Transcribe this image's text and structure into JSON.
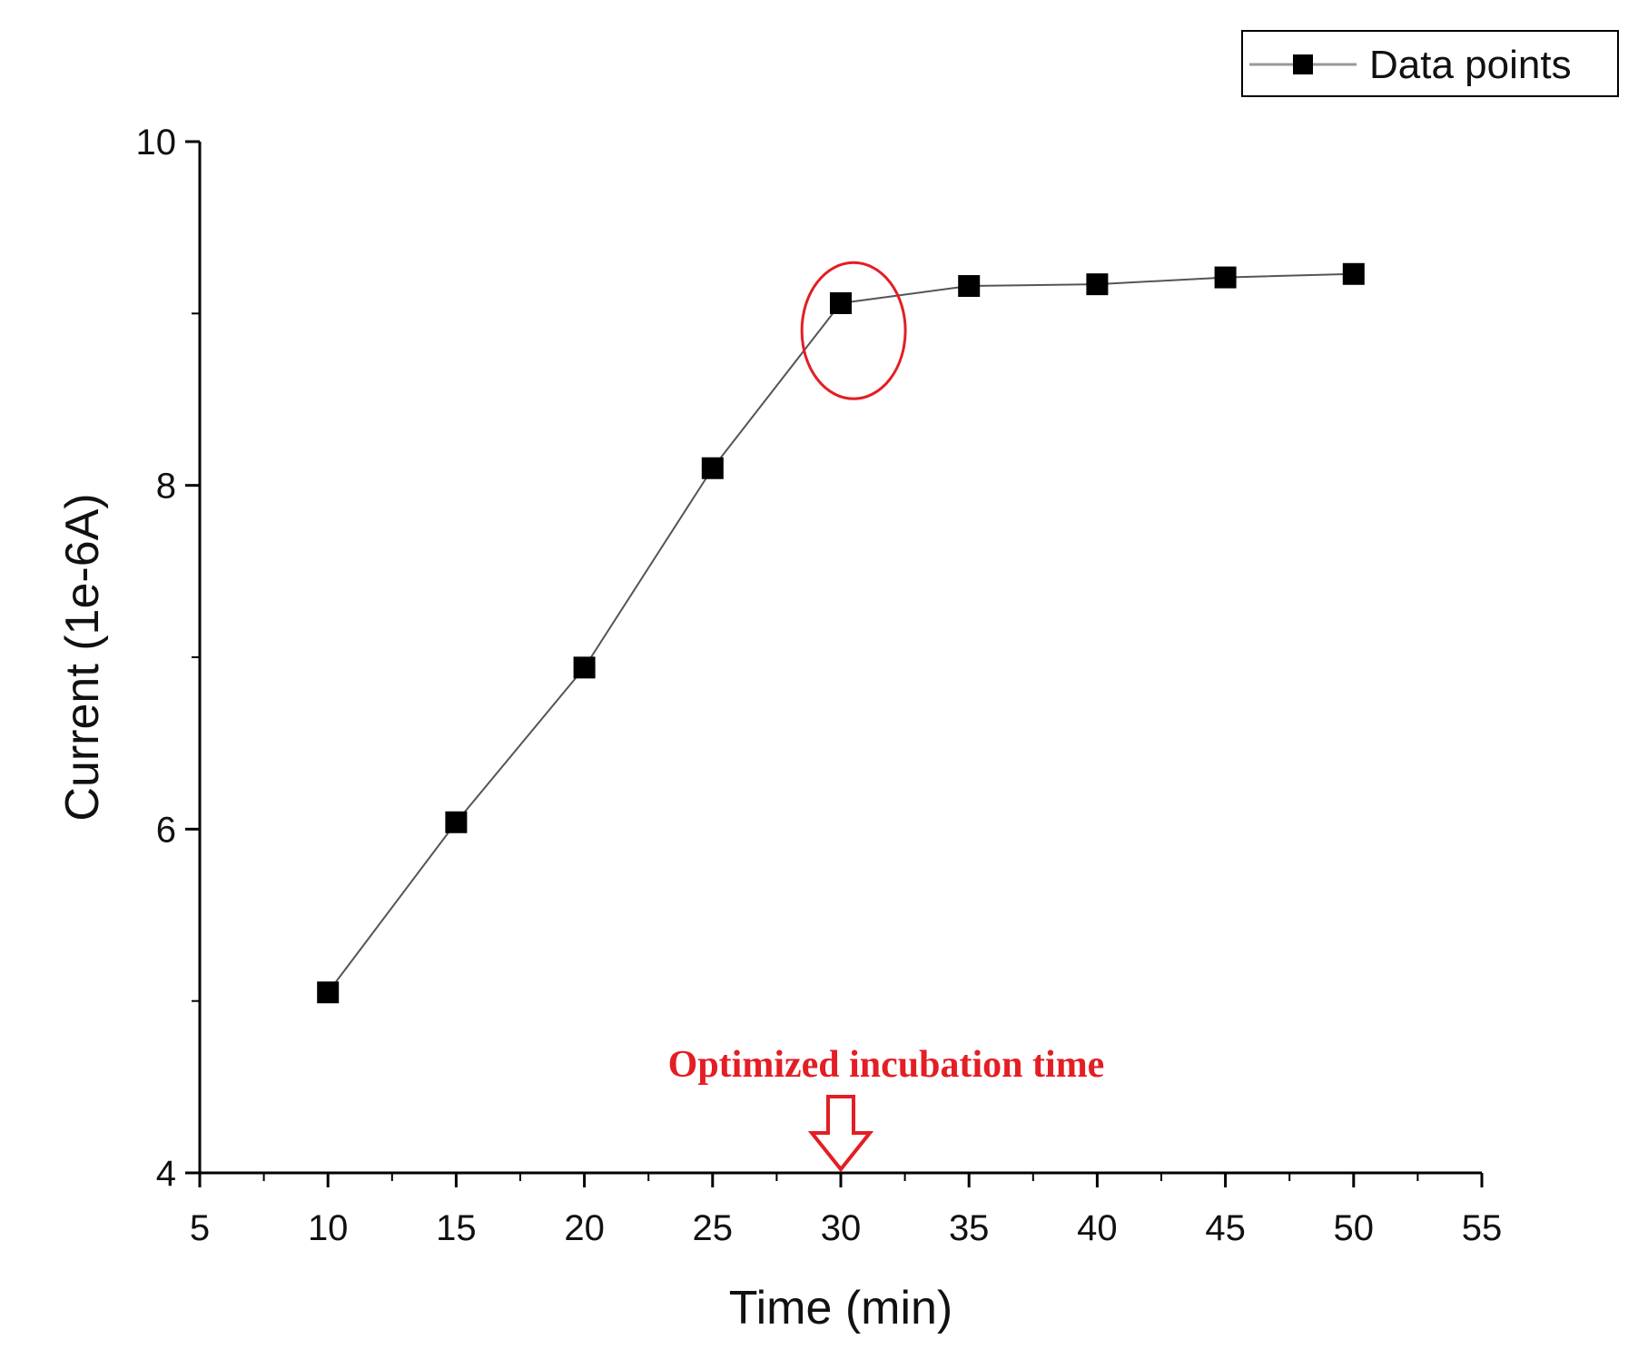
{
  "chart_data": {
    "type": "line",
    "title": "",
    "xlabel": "Time (min)",
    "ylabel": "Current (1e-6A)",
    "xlim": [
      5,
      55
    ],
    "ylim": [
      4,
      10
    ],
    "xticks": [
      5,
      10,
      15,
      20,
      25,
      30,
      35,
      40,
      45,
      50,
      55
    ],
    "yticks": [
      4,
      6,
      8,
      10
    ],
    "series": [
      {
        "name": "Data points",
        "marker": "square",
        "color": "#000000",
        "x": [
          10,
          15,
          20,
          25,
          30,
          35,
          40,
          45,
          50
        ],
        "values": [
          5.05,
          6.04,
          6.94,
          8.1,
          9.06,
          9.16,
          9.17,
          9.21,
          9.23
        ]
      }
    ],
    "legend": {
      "position": "top-right",
      "label": "Data points"
    },
    "annotations": [
      {
        "text": "Optimized incubation time",
        "x": 30,
        "color": "#e31e24",
        "kind": "arrow-down"
      },
      {
        "kind": "circle",
        "x": 30.5,
        "y": 8.9,
        "color": "#e31e24"
      }
    ]
  }
}
